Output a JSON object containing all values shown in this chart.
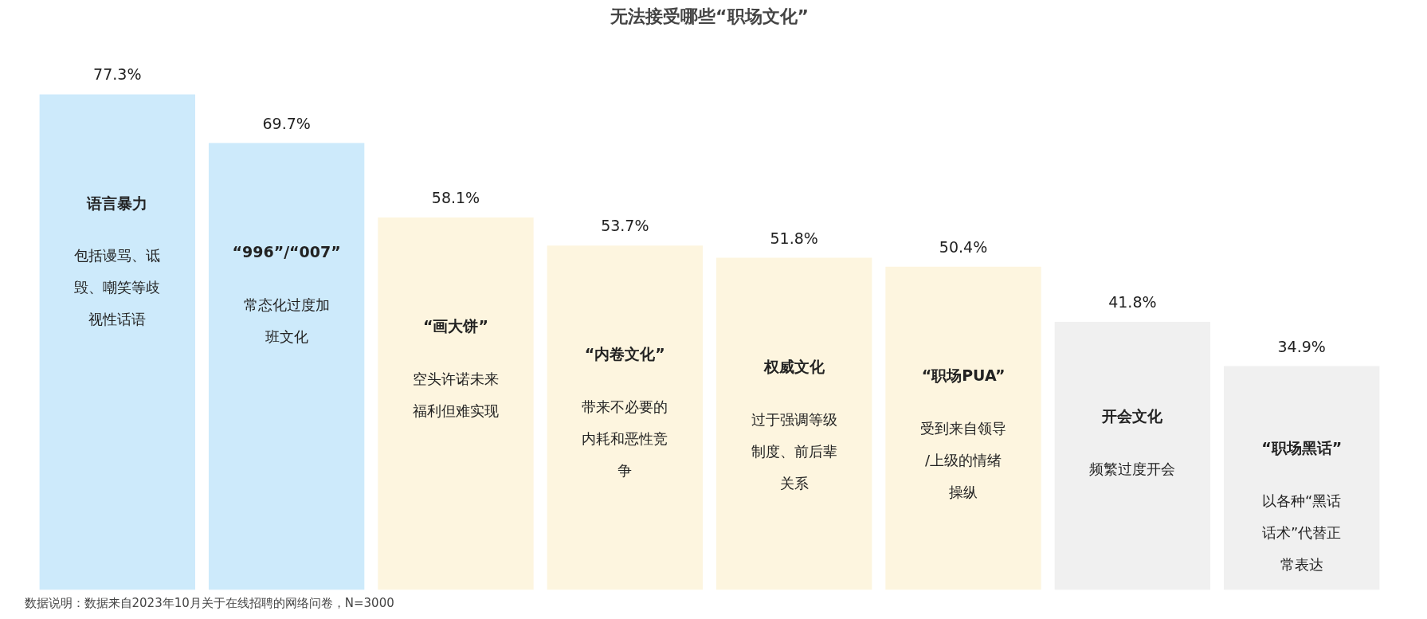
{
  "chart_data": {
    "type": "bar",
    "title": "无法接受哪些“职场文化”",
    "categories": [
      "语言暴力",
      "“996”/“007”",
      "“画大饼”",
      "“内卷文化”",
      "权威文化",
      "“职场PUA”",
      "开会文化",
      "“职场黑话”"
    ],
    "values": [
      77.3,
      69.7,
      58.1,
      53.7,
      51.8,
      50.4,
      41.8,
      34.9
    ],
    "value_labels": [
      "77.3%",
      "69.7%",
      "58.1%",
      "53.7%",
      "51.8%",
      "50.4%",
      "41.8%",
      "34.9%"
    ],
    "colors": [
      "#cdeafb",
      "#cdeafb",
      "#fdf5df",
      "#fdf5df",
      "#fdf5df",
      "#fdf5df",
      "#f0f0f0",
      "#f0f0f0"
    ],
    "annotations": [
      "包括谩骂、诋毁、嘲笑等歧视性话语",
      "常态化过度加班文化",
      "空头许诺未来福利但难实现",
      "带来不必要的内耗和恶性竞争",
      "过于强调等级制度、前后辈关系",
      "受到来自领导/上级的情绪操纵",
      "频繁过度开会",
      "以各种“黑话话术”代替正常表达",
      "数据说明：数据来自2023年10月关于在线招聘的网络问卷，N=3000"
    ],
    "grid": false
  }
}
